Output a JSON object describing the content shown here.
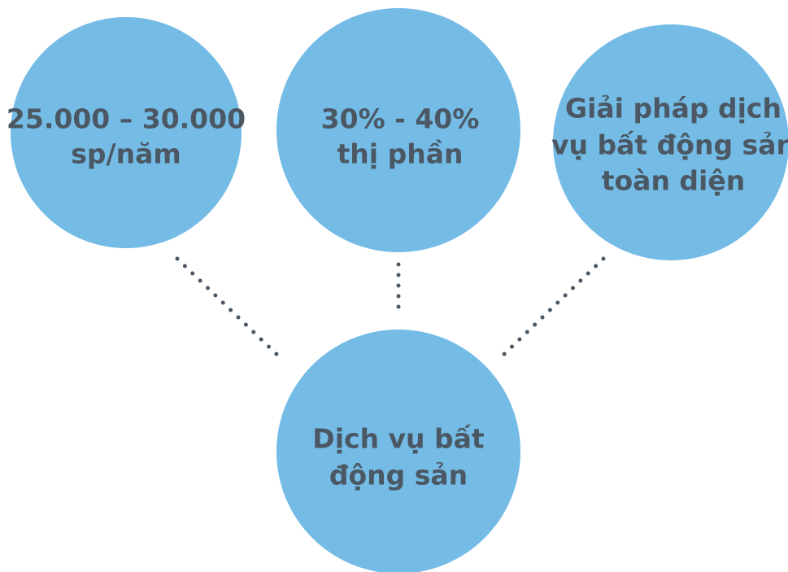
{
  "nodes": [
    {
      "lines": [
        "25.000 – 30.000",
        "sp/năm"
      ]
    },
    {
      "lines": [
        "30% - 40%",
        "thị phần"
      ]
    },
    {
      "lines": [
        "Giải pháp dịch",
        "vụ bất động sản",
        "toàn diện"
      ]
    },
    {
      "lines": [
        "Dịch vụ bất",
        "động sản"
      ]
    }
  ]
}
